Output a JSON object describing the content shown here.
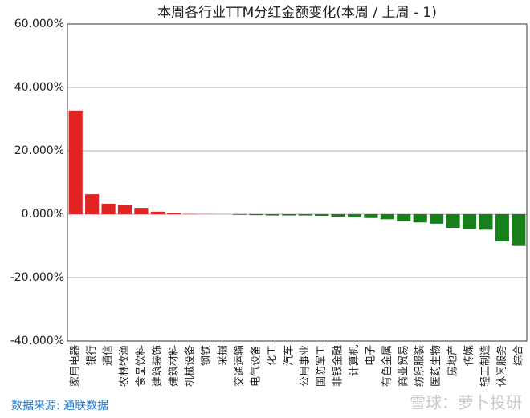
{
  "chart_data": {
    "type": "bar",
    "title": "本周各行业TTM分红金额变化(本周 / 上周 - 1)",
    "categories": [
      "家用电器",
      "银行",
      "通信",
      "农林牧渔",
      "食品饮料",
      "建筑装饰",
      "建筑材料",
      "机械设备",
      "钢铁",
      "采掘",
      "交通运输",
      "电气设备",
      "化工",
      "汽车",
      "公用事业",
      "国防军工",
      "非银金融",
      "计算机",
      "电子",
      "有色金属",
      "商业贸易",
      "纺织服装",
      "医药生物",
      "房地产",
      "传媒",
      "轻工制造",
      "休闲服务",
      "综合"
    ],
    "values": [
      32.7,
      6.3,
      3.3,
      3.0,
      2.0,
      0.8,
      0.4,
      0.1,
      0.05,
      0.0,
      -0.2,
      -0.3,
      -0.4,
      -0.4,
      -0.4,
      -0.5,
      -0.8,
      -1.0,
      -1.2,
      -1.6,
      -2.3,
      -2.6,
      -3.0,
      -4.3,
      -4.6,
      -4.9,
      -8.6,
      -9.8
    ],
    "positive_color": "#e02424",
    "negative_color": "#17801a",
    "ylim": [
      -40,
      60
    ],
    "yticks": [
      {
        "value": -40,
        "label": "-40.000%"
      },
      {
        "value": -20,
        "label": "-20.000%"
      },
      {
        "value": 0,
        "label": "0.000%"
      },
      {
        "value": 20,
        "label": "20.000%"
      },
      {
        "value": 40,
        "label": "40.000%"
      },
      {
        "value": 60,
        "label": "60.000%"
      }
    ],
    "grid": true,
    "source": "数据来源: 通联数据",
    "watermark": "雪球：萝卜投研"
  }
}
